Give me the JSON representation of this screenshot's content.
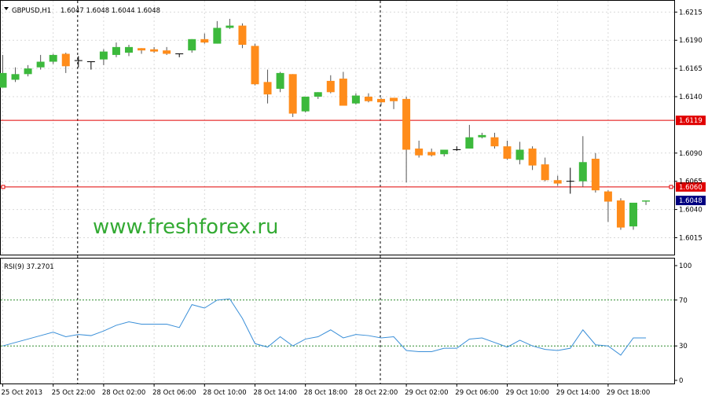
{
  "symbol_header": "GBPUSD,H1",
  "ohlc_header": "1.6047 1.6048 1.6044 1.6048",
  "watermark": "www.freshforex.ru",
  "colors": {
    "bull": "#3cb93c",
    "bear": "#ff8c1a",
    "doji": "#000000",
    "hline": "#e00000",
    "current_tag": "#000080",
    "rsi_line": "#3a8fd8",
    "rsi_level": "#2e8b2e",
    "grid": "#d9d9d9",
    "watermark": "#33aa33"
  },
  "chart_data": [
    {
      "type": "candlestick",
      "symbol": "GBPUSD",
      "timeframe": "H1",
      "ylim": [
        1.6,
        1.6225
      ],
      "yticks": [
        "1.6215",
        "1.6190",
        "1.6165",
        "1.6140",
        "1.6090",
        "1.6065",
        "1.6040",
        "1.6015"
      ],
      "xticks": [
        "25 Oct 2013",
        "25 Oct 22:00",
        "28 Oct 02:00",
        "28 Oct 06:00",
        "28 Oct 10:00",
        "28 Oct 14:00",
        "28 Oct 18:00",
        "28 Oct 22:00",
        "29 Oct 02:00",
        "29 Oct 06:00",
        "29 Oct 10:00",
        "29 Oct 14:00",
        "29 Oct 18:00"
      ],
      "horizontal_lines": [
        {
          "value": 1.6119,
          "label": "1.6119"
        },
        {
          "value": 1.606,
          "label": "1.6060"
        }
      ],
      "current_price": {
        "value": 1.6048,
        "label": "1.6048"
      },
      "candles": [
        {
          "o": 1.6148,
          "h": 1.6177,
          "c": 1.6161,
          "l": 1.6148
        },
        {
          "o": 1.6155,
          "h": 1.6166,
          "c": 1.616,
          "l": 1.6153
        },
        {
          "o": 1.616,
          "h": 1.6168,
          "c": 1.6165,
          "l": 1.6158
        },
        {
          "o": 1.6166,
          "h": 1.6177,
          "c": 1.6171,
          "l": 1.6164
        },
        {
          "o": 1.6171,
          "h": 1.6178,
          "c": 1.6177,
          "l": 1.6169
        },
        {
          "o": 1.6178,
          "h": 1.6179,
          "c": 1.6167,
          "l": 1.6161
        },
        {
          "o": 1.6172,
          "h": 1.6176,
          "c": 1.6172,
          "l": 1.6166
        },
        {
          "o": 1.6171,
          "h": 1.6171,
          "c": 1.6171,
          "l": 1.6164
        },
        {
          "o": 1.6173,
          "h": 1.6182,
          "c": 1.618,
          "l": 1.6168
        },
        {
          "o": 1.6177,
          "h": 1.6188,
          "c": 1.6184,
          "l": 1.6175
        },
        {
          "o": 1.6179,
          "h": 1.6186,
          "c": 1.6184,
          "l": 1.6176
        },
        {
          "o": 1.6183,
          "h": 1.6183,
          "c": 1.6181,
          "l": 1.6178
        },
        {
          "o": 1.6182,
          "h": 1.6184,
          "c": 1.618,
          "l": 1.6179
        },
        {
          "o": 1.6181,
          "h": 1.6184,
          "c": 1.6178,
          "l": 1.6177
        },
        {
          "o": 1.6178,
          "h": 1.6178,
          "c": 1.6178,
          "l": 1.6175
        },
        {
          "o": 1.6181,
          "h": 1.6191,
          "c": 1.6191,
          "l": 1.6179
        },
        {
          "o": 1.6191,
          "h": 1.6196,
          "c": 1.6188,
          "l": 1.6187
        },
        {
          "o": 1.6187,
          "h": 1.6207,
          "c": 1.6201,
          "l": 1.6187
        },
        {
          "o": 1.6201,
          "h": 1.6209,
          "c": 1.6203,
          "l": 1.62
        },
        {
          "o": 1.6203,
          "h": 1.6205,
          "c": 1.6186,
          "l": 1.6183
        },
        {
          "o": 1.6185,
          "h": 1.6187,
          "c": 1.6151,
          "l": 1.615
        },
        {
          "o": 1.6153,
          "h": 1.6164,
          "c": 1.6142,
          "l": 1.6134
        },
        {
          "o": 1.6147,
          "h": 1.6162,
          "c": 1.6161,
          "l": 1.6144
        },
        {
          "o": 1.616,
          "h": 1.616,
          "c": 1.6125,
          "l": 1.6122
        },
        {
          "o": 1.6127,
          "h": 1.6138,
          "c": 1.614,
          "l": 1.6126
        },
        {
          "o": 1.614,
          "h": 1.6144,
          "c": 1.6144,
          "l": 1.6138
        },
        {
          "o": 1.6154,
          "h": 1.6159,
          "c": 1.6144,
          "l": 1.6143
        },
        {
          "o": 1.6156,
          "h": 1.6162,
          "c": 1.6132,
          "l": 1.6132
        },
        {
          "o": 1.6134,
          "h": 1.6143,
          "c": 1.6141,
          "l": 1.6133
        },
        {
          "o": 1.614,
          "h": 1.6143,
          "c": 1.6136,
          "l": 1.6135
        },
        {
          "o": 1.6138,
          "h": 1.6139,
          "c": 1.6135,
          "l": 1.6132
        },
        {
          "o": 1.6139,
          "h": 1.6139,
          "c": 1.6136,
          "l": 1.6129
        },
        {
          "o": 1.6138,
          "h": 1.614,
          "c": 1.6093,
          "l": 1.6064
        },
        {
          "o": 1.6094,
          "h": 1.6101,
          "c": 1.6088,
          "l": 1.6086
        },
        {
          "o": 1.6091,
          "h": 1.6094,
          "c": 1.6088,
          "l": 1.6087
        },
        {
          "o": 1.6089,
          "h": 1.6093,
          "c": 1.6093,
          "l": 1.6087
        },
        {
          "o": 1.6093,
          "h": 1.6096,
          "c": 1.6093,
          "l": 1.6092
        },
        {
          "o": 1.6094,
          "h": 1.6115,
          "c": 1.6104,
          "l": 1.6094
        },
        {
          "o": 1.6104,
          "h": 1.6108,
          "c": 1.6106,
          "l": 1.6103
        },
        {
          "o": 1.6104,
          "h": 1.6108,
          "c": 1.6096,
          "l": 1.6094
        },
        {
          "o": 1.6096,
          "h": 1.6101,
          "c": 1.6085,
          "l": 1.6084
        },
        {
          "o": 1.6084,
          "h": 1.61,
          "c": 1.6093,
          "l": 1.608
        },
        {
          "o": 1.6094,
          "h": 1.6096,
          "c": 1.6079,
          "l": 1.6075
        },
        {
          "o": 1.608,
          "h": 1.6086,
          "c": 1.6066,
          "l": 1.6065
        },
        {
          "o": 1.6066,
          "h": 1.607,
          "c": 1.6063,
          "l": 1.6061
        },
        {
          "o": 1.6065,
          "h": 1.6077,
          "c": 1.6065,
          "l": 1.6054
        },
        {
          "o": 1.6065,
          "h": 1.6105,
          "c": 1.6082,
          "l": 1.606
        },
        {
          "o": 1.6085,
          "h": 1.609,
          "c": 1.6057,
          "l": 1.6055
        },
        {
          "o": 1.6056,
          "h": 1.6057,
          "c": 1.6047,
          "l": 1.6029
        },
        {
          "o": 1.6048,
          "h": 1.605,
          "c": 1.6024,
          "l": 1.6022
        },
        {
          "o": 1.6025,
          "h": 1.6046,
          "c": 1.6046,
          "l": 1.6022
        },
        {
          "o": 1.6047,
          "h": 1.6048,
          "c": 1.6048,
          "l": 1.6044
        }
      ]
    },
    {
      "type": "line",
      "title": "RSI(9) 37.2701",
      "ylim": [
        0,
        100
      ],
      "yticks": [
        "100",
        "70",
        "30",
        "0"
      ],
      "levels": [
        70,
        30
      ],
      "values": [
        30,
        33,
        36,
        39,
        42,
        38,
        40,
        39,
        43,
        48,
        51,
        49,
        49,
        49,
        46,
        66,
        63,
        70,
        71,
        54,
        32,
        29,
        38,
        30,
        36,
        38,
        44,
        37,
        40,
        39,
        37,
        38,
        26,
        25,
        25,
        28,
        28,
        36,
        37,
        33,
        29,
        35,
        30,
        27,
        26,
        28,
        44,
        31,
        30,
        22,
        37,
        37
      ]
    }
  ]
}
